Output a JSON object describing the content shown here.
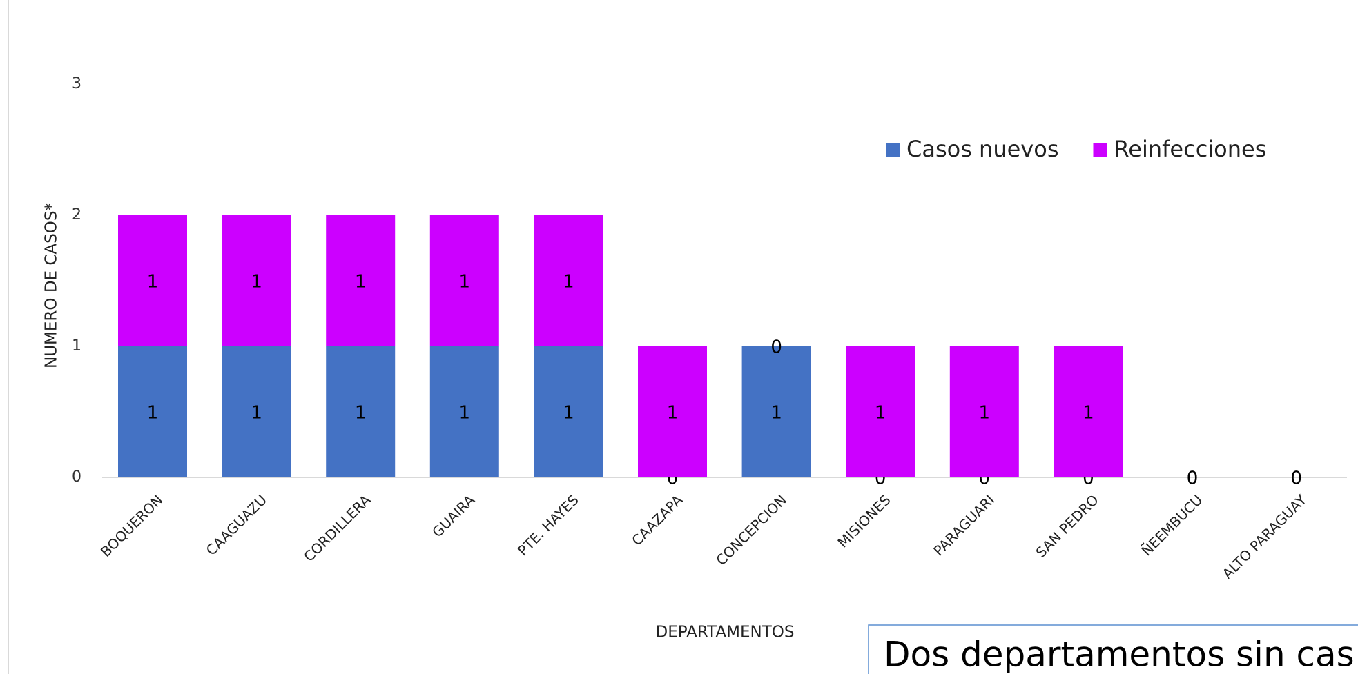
{
  "chart_data": {
    "type": "bar",
    "stacked": true,
    "y_label": "NUMERO DE CASOS*",
    "x_label": "DEPARTAMENTOS",
    "categories": [
      "BOQUERON",
      "CAAGUAZU",
      "CORDILLERA",
      "GUAIRA",
      "PTE. HAYES",
      "CAAZAPA",
      "CONCEPCION",
      "MISIONES",
      "PARAGUARI",
      "SAN PEDRO",
      "ÑEEMBUCU",
      "ALTO PARAGUAY"
    ],
    "series": [
      {
        "name": "Casos nuevos",
        "color": "#4472c4",
        "values": [
          1,
          1,
          1,
          1,
          1,
          0,
          1,
          0,
          0,
          0,
          0,
          0
        ]
      },
      {
        "name": "Reinfecciones",
        "color": "#cc00ff",
        "values": [
          1,
          1,
          1,
          1,
          1,
          1,
          0,
          1,
          1,
          1,
          0,
          0
        ]
      }
    ],
    "ylim": [
      0,
      3
    ],
    "yticks": [
      0,
      1,
      2,
      3
    ],
    "grid": false,
    "legend": "top-right",
    "annotation": "Dos departamentos sin cas"
  }
}
